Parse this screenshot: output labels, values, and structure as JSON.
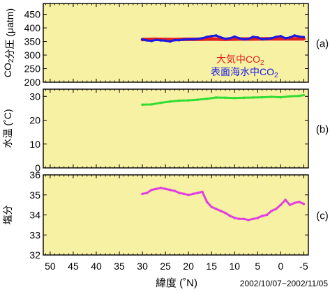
{
  "figure": {
    "xlabel": "緯度 (˚N)",
    "date_range": "2002/10/07~2002/11/05"
  },
  "style": {
    "panel_bg": "#f7f1a4",
    "axis_color": "#000000",
    "atm_color": "#e02020",
    "sea_color": "#1a1ae6",
    "temp_color": "#33dd33",
    "sal_color": "#e040e0"
  },
  "chart_data": [
    {
      "type": "line",
      "panel_label": "(a)",
      "ylabel": "CO2分圧 (μatm)",
      "xlim": [
        51.5,
        -6
      ],
      "xticks": [
        50,
        45,
        40,
        35,
        30,
        25,
        20,
        15,
        10,
        5,
        0,
        -5
      ],
      "ylim": [
        200,
        490
      ],
      "yticks": [
        200,
        250,
        300,
        350,
        400,
        450
      ],
      "legend": [
        "大気中CO2",
        "表面海水中CO2"
      ],
      "series": [
        {
          "name": "大気中CO2",
          "x": [
            30,
            27,
            24,
            21,
            18,
            15,
            12,
            9,
            6,
            3,
            0,
            -3,
            -5
          ],
          "y": [
            357,
            358,
            357,
            358,
            358,
            359,
            358,
            359,
            359,
            360,
            360,
            360,
            360
          ]
        },
        {
          "name": "表面海水中CO2",
          "x": [
            30,
            29,
            28,
            27,
            26,
            25,
            24,
            23,
            22,
            21,
            20,
            19,
            18,
            17,
            16,
            15,
            14,
            13,
            12,
            11,
            10,
            9,
            8,
            7,
            6,
            5,
            4,
            3,
            2,
            1,
            0,
            -1,
            -2,
            -3,
            -4,
            -5
          ],
          "y": [
            358,
            354,
            352,
            356,
            354,
            353,
            350,
            355,
            355,
            357,
            358,
            358,
            360,
            362,
            367,
            370,
            372,
            365,
            360,
            362,
            368,
            362,
            358,
            360,
            367,
            365,
            358,
            360,
            362,
            367,
            370,
            362,
            365,
            372,
            368,
            366
          ]
        }
      ]
    },
    {
      "type": "line",
      "panel_label": "(b)",
      "ylabel": "水温 (˚C)",
      "xlim": [
        51.5,
        -6
      ],
      "ylim": [
        0,
        33
      ],
      "yticks": [
        0,
        10,
        20,
        30
      ],
      "series": [
        {
          "name": "",
          "x": [
            30,
            28,
            26,
            24,
            22,
            20,
            18,
            16,
            14,
            12,
            10,
            8,
            6,
            4,
            2,
            0,
            -2,
            -4,
            -5
          ],
          "y": [
            26.5,
            26.6,
            27.3,
            27.8,
            28.2,
            28.3,
            28.6,
            29.0,
            29.5,
            29.4,
            29.3,
            29.4,
            29.5,
            29.6,
            29.8,
            29.6,
            30.0,
            30.2,
            30.5
          ]
        }
      ]
    },
    {
      "type": "line",
      "panel_label": "(c)",
      "ylabel": "塩分",
      "xlim": [
        51.5,
        -6
      ],
      "ylim": [
        32,
        36
      ],
      "yticks": [
        32,
        33,
        34,
        35,
        36
      ],
      "series": [
        {
          "name": "",
          "x": [
            30,
            29,
            28,
            27,
            26,
            25,
            24,
            23,
            22,
            21,
            20,
            19,
            18,
            17,
            16,
            15,
            14,
            13,
            12,
            11,
            10,
            9,
            8,
            7,
            6,
            5,
            4,
            3,
            2,
            1,
            0,
            -1,
            -2,
            -3,
            -4,
            -5
          ],
          "y": [
            35.05,
            35.1,
            35.25,
            35.3,
            35.35,
            35.3,
            35.25,
            35.2,
            35.1,
            35.05,
            35.0,
            35.05,
            35.1,
            35.15,
            34.65,
            34.4,
            34.3,
            34.2,
            34.1,
            33.95,
            33.85,
            33.8,
            33.8,
            33.75,
            33.8,
            33.85,
            33.95,
            34.0,
            34.2,
            34.3,
            34.5,
            34.75,
            34.5,
            34.6,
            34.65,
            34.55
          ]
        }
      ]
    }
  ]
}
